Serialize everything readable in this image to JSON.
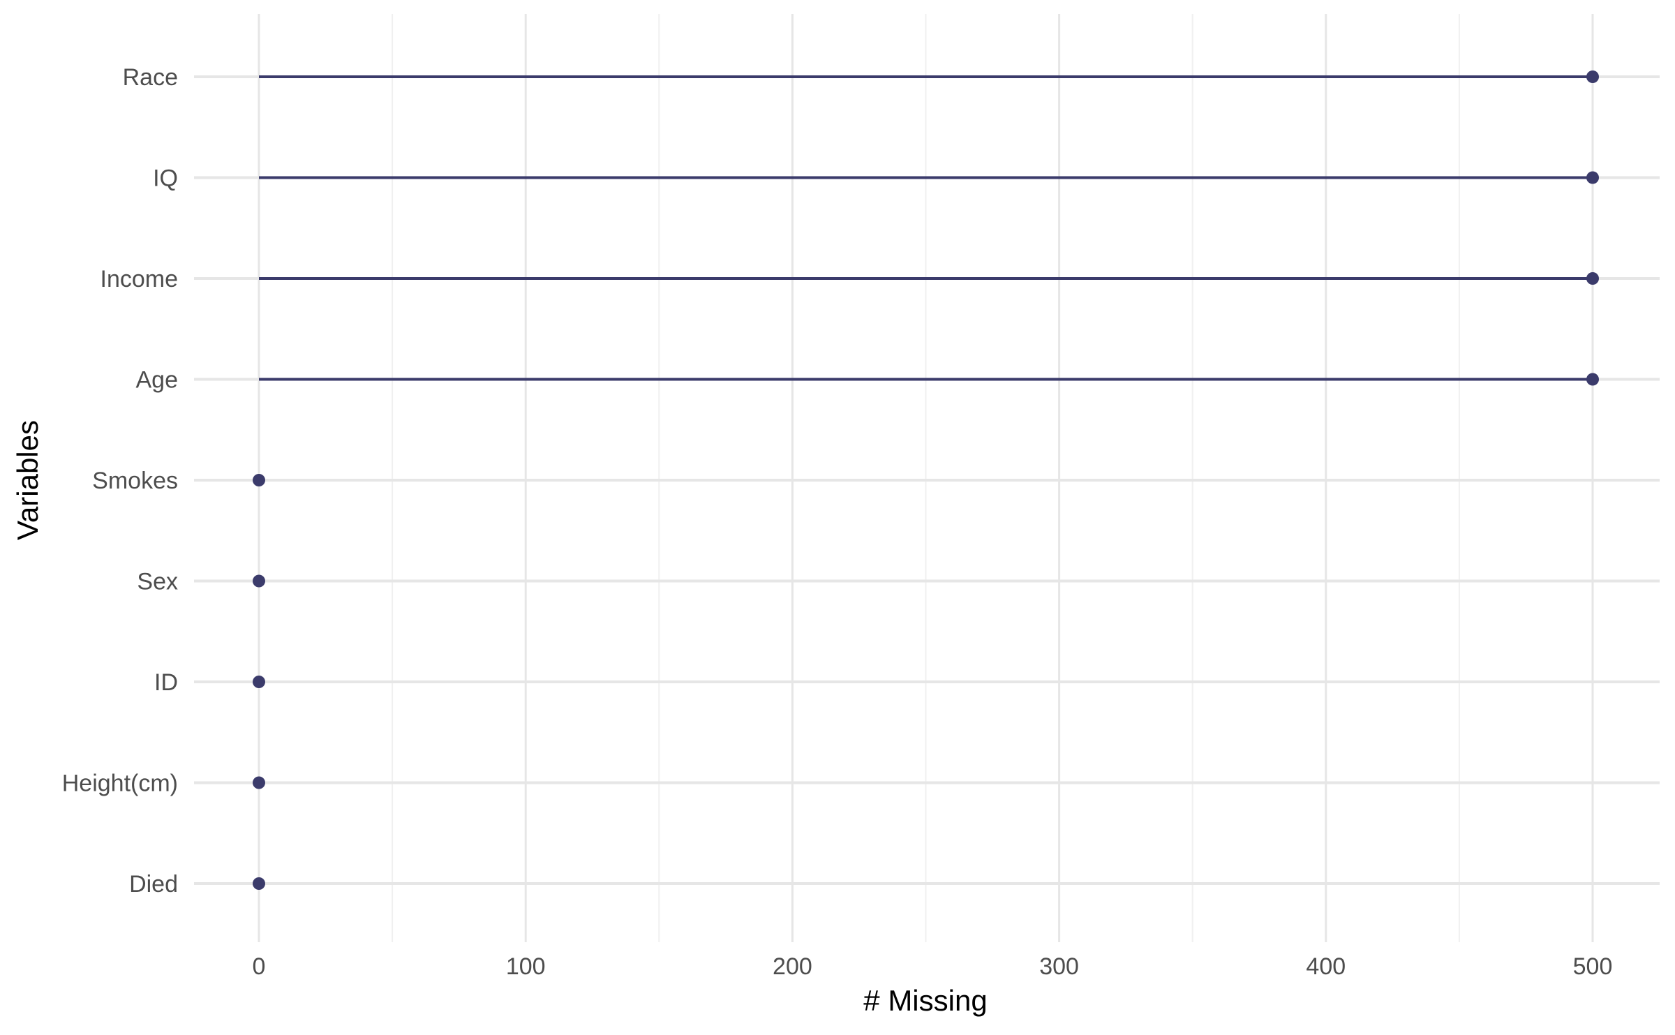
{
  "chart_data": {
    "type": "lollipop",
    "xlabel": "# Missing",
    "ylabel": "Variables",
    "xlim": [
      -25,
      525
    ],
    "x_ticks": [
      0,
      100,
      200,
      300,
      400,
      500
    ],
    "x_tick_labels": [
      "0",
      "100",
      "200",
      "300",
      "400",
      "500"
    ],
    "categories": [
      "Race",
      "IQ",
      "Income",
      "Age",
      "Smokes",
      "Sex",
      "ID",
      "Height(cm)",
      "Died"
    ],
    "values": [
      500,
      500,
      500,
      500,
      0,
      0,
      0,
      0,
      0
    ],
    "grid": true,
    "legend": "none",
    "colors": {
      "mark": "#3b3b6b",
      "grid_major": "#e6e6e6",
      "grid_minor": "#f0f0f0",
      "tick_text": "#4d4d4d",
      "title_text": "#000000"
    }
  }
}
